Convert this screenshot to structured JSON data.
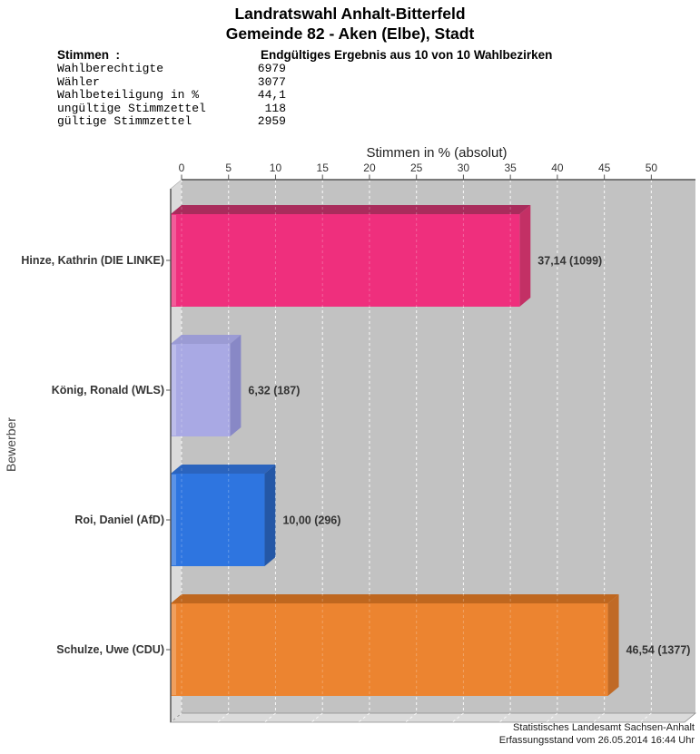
{
  "header": {
    "title_line1": "Landratswahl Anhalt-Bitterfeld",
    "title_line2": "Gemeinde 82 - Aken (Elbe), Stadt",
    "stimmen_label": "Stimmen  :",
    "result_status": "Endgültiges Ergebnis aus 10 von 10 Wahlbezirken",
    "stats": [
      {
        "label": "Wahlberechtigte",
        "value": "6979"
      },
      {
        "label": "Wähler",
        "value": "3077"
      },
      {
        "label": "Wahlbeteiligung in %",
        "value": "44,1"
      },
      {
        "label": "ungültige Stimmzettel",
        "value": "118"
      },
      {
        "label": "gültige Stimmzettel",
        "value": "2959"
      }
    ]
  },
  "chart_data": {
    "type": "bar",
    "orientation": "horizontal",
    "style": "3d",
    "xlabel": "Stimmen in % (absolut)",
    "ylabel": "Bewerber",
    "xlim": [
      0,
      54.7
    ],
    "xticks": [
      0,
      5,
      10,
      15,
      20,
      25,
      30,
      35,
      40,
      45,
      50
    ],
    "grid": true,
    "categories": [
      "Hinze, Kathrin (DIE LINKE)",
      "König, Ronald (WLS)",
      "Roi, Daniel (AfD)",
      "Schulze, Uwe (CDU)"
    ],
    "values": [
      37.14,
      6.32,
      10.0,
      46.54
    ],
    "absolute_votes": [
      1099,
      187,
      296,
      1377
    ],
    "value_labels": [
      "37,14 (1099)",
      "6,32 (187)",
      "10,00 (296)",
      "46,54 (1377)"
    ],
    "bar_colors": [
      "#EF2F7D",
      "#A9A9E4",
      "#2E75E0",
      "#EC8430"
    ],
    "bar_top_colors": [
      "#A92C5C",
      "#9B9BD4",
      "#2B64BE",
      "#BF671F"
    ],
    "bar_side_colors": [
      "#C33065",
      "#8888C6",
      "#2457A6",
      "#C06A26"
    ],
    "panel_color": "#C2C2C2",
    "wall_color": "#DBDBDB",
    "axis_color": "#555555",
    "gridline_color": "#FFFFFF"
  },
  "footer": {
    "line1": "Statistisches Landesamt Sachsen-Anhalt",
    "line2": "Erfassungsstand vom 26.05.2014 16:44 Uhr"
  }
}
